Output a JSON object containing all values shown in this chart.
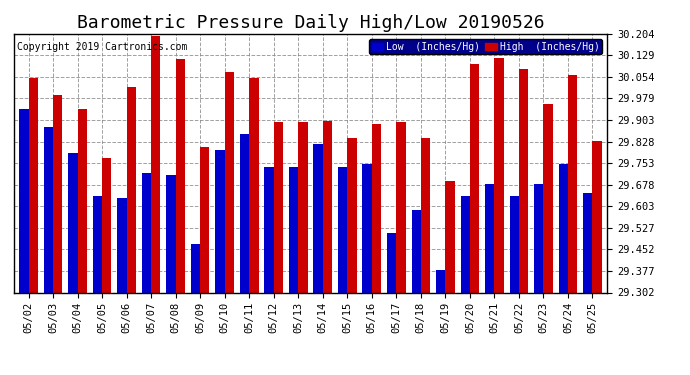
{
  "title": "Barometric Pressure Daily High/Low 20190526",
  "copyright": "Copyright 2019 Cartronics.com",
  "dates": [
    "05/02",
    "05/03",
    "05/04",
    "05/05",
    "05/06",
    "05/07",
    "05/08",
    "05/09",
    "05/10",
    "05/11",
    "05/12",
    "05/13",
    "05/14",
    "05/15",
    "05/16",
    "05/17",
    "05/18",
    "05/19",
    "05/20",
    "05/21",
    "05/22",
    "05/23",
    "05/24",
    "05/25"
  ],
  "low_values": [
    29.94,
    29.878,
    29.79,
    29.64,
    29.63,
    29.72,
    29.71,
    29.47,
    29.8,
    29.855,
    29.74,
    29.74,
    29.82,
    29.74,
    29.75,
    29.51,
    29.59,
    29.38,
    29.64,
    29.68,
    29.64,
    29.68,
    29.75,
    29.65
  ],
  "high_values": [
    30.05,
    29.99,
    29.94,
    29.77,
    30.02,
    30.195,
    30.115,
    29.81,
    30.07,
    30.05,
    29.895,
    29.895,
    29.9,
    29.84,
    29.89,
    29.895,
    29.84,
    29.69,
    30.1,
    30.12,
    30.08,
    29.96,
    30.06,
    29.83
  ],
  "low_color": "#0000cc",
  "high_color": "#cc0000",
  "background_color": "#ffffff",
  "grid_color": "#888888",
  "ylim_min": 29.302,
  "ylim_max": 30.204,
  "yticks": [
    29.302,
    29.377,
    29.452,
    29.527,
    29.603,
    29.678,
    29.753,
    29.828,
    29.903,
    29.979,
    30.054,
    30.129,
    30.204
  ],
  "legend_low_label": "Low  (Inches/Hg)",
  "legend_high_label": "High  (Inches/Hg)",
  "title_fontsize": 13,
  "tick_fontsize": 7.5,
  "copyright_fontsize": 7
}
